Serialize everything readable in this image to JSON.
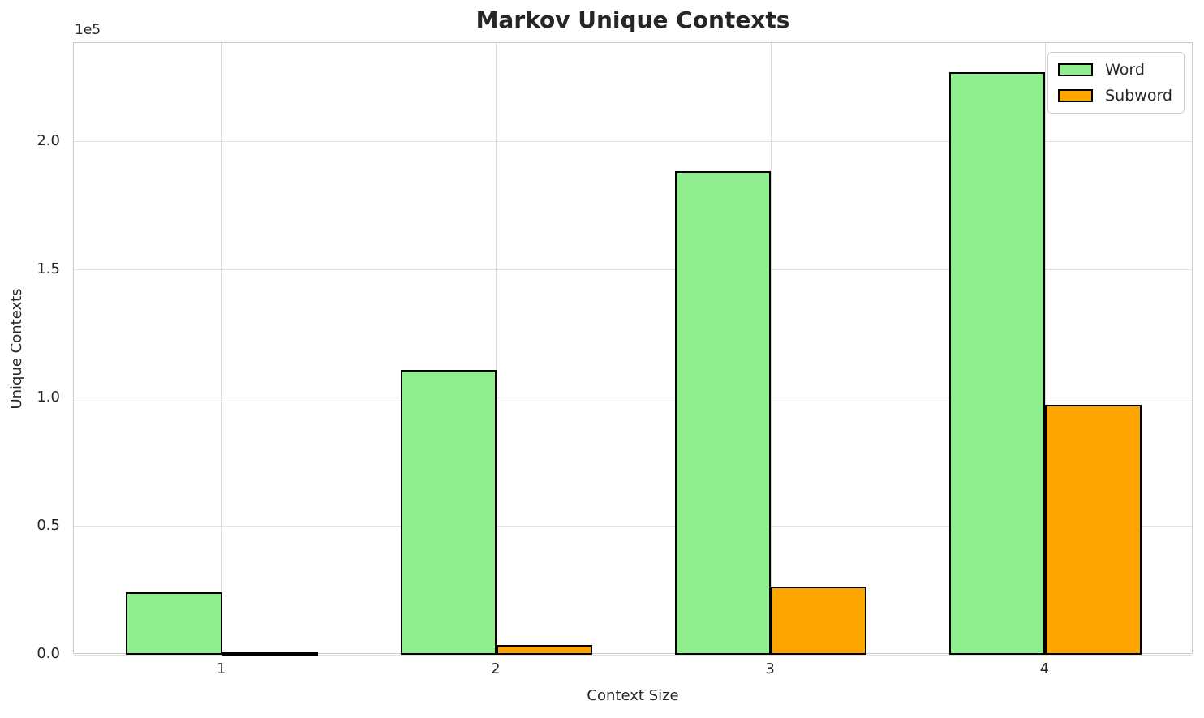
{
  "chart_data": {
    "type": "bar",
    "title": "Markov Unique Contexts",
    "xlabel": "Context Size",
    "ylabel": "Unique Contexts",
    "y_offset_label": "1e5",
    "categories": [
      "1",
      "2",
      "3",
      "4"
    ],
    "series": [
      {
        "name": "Word",
        "color": "#90EE90",
        "values": [
          24500,
          111000,
          188500,
          227000
        ]
      },
      {
        "name": "Subword",
        "color": "#FFA500",
        "values": [
          800,
          3800,
          26600,
          97500
        ]
      }
    ],
    "bar_edge_color": "#000000",
    "bar_width_frac": 0.35,
    "xlim": [
      -0.54,
      3.54
    ],
    "ylim": [
      0,
      238500
    ],
    "yticks": {
      "values": [
        0,
        50000,
        100000,
        150000,
        200000
      ],
      "labels": [
        "0.0",
        "0.5",
        "1.0",
        "1.5",
        "2.0"
      ]
    },
    "grid": true,
    "legend": {
      "position": "upper right",
      "entries": [
        "Word",
        "Subword"
      ]
    },
    "colors": {
      "background": "#ffffff",
      "grid": "#e0e0e0",
      "spine": "#cccccc",
      "text": "#262626"
    }
  }
}
